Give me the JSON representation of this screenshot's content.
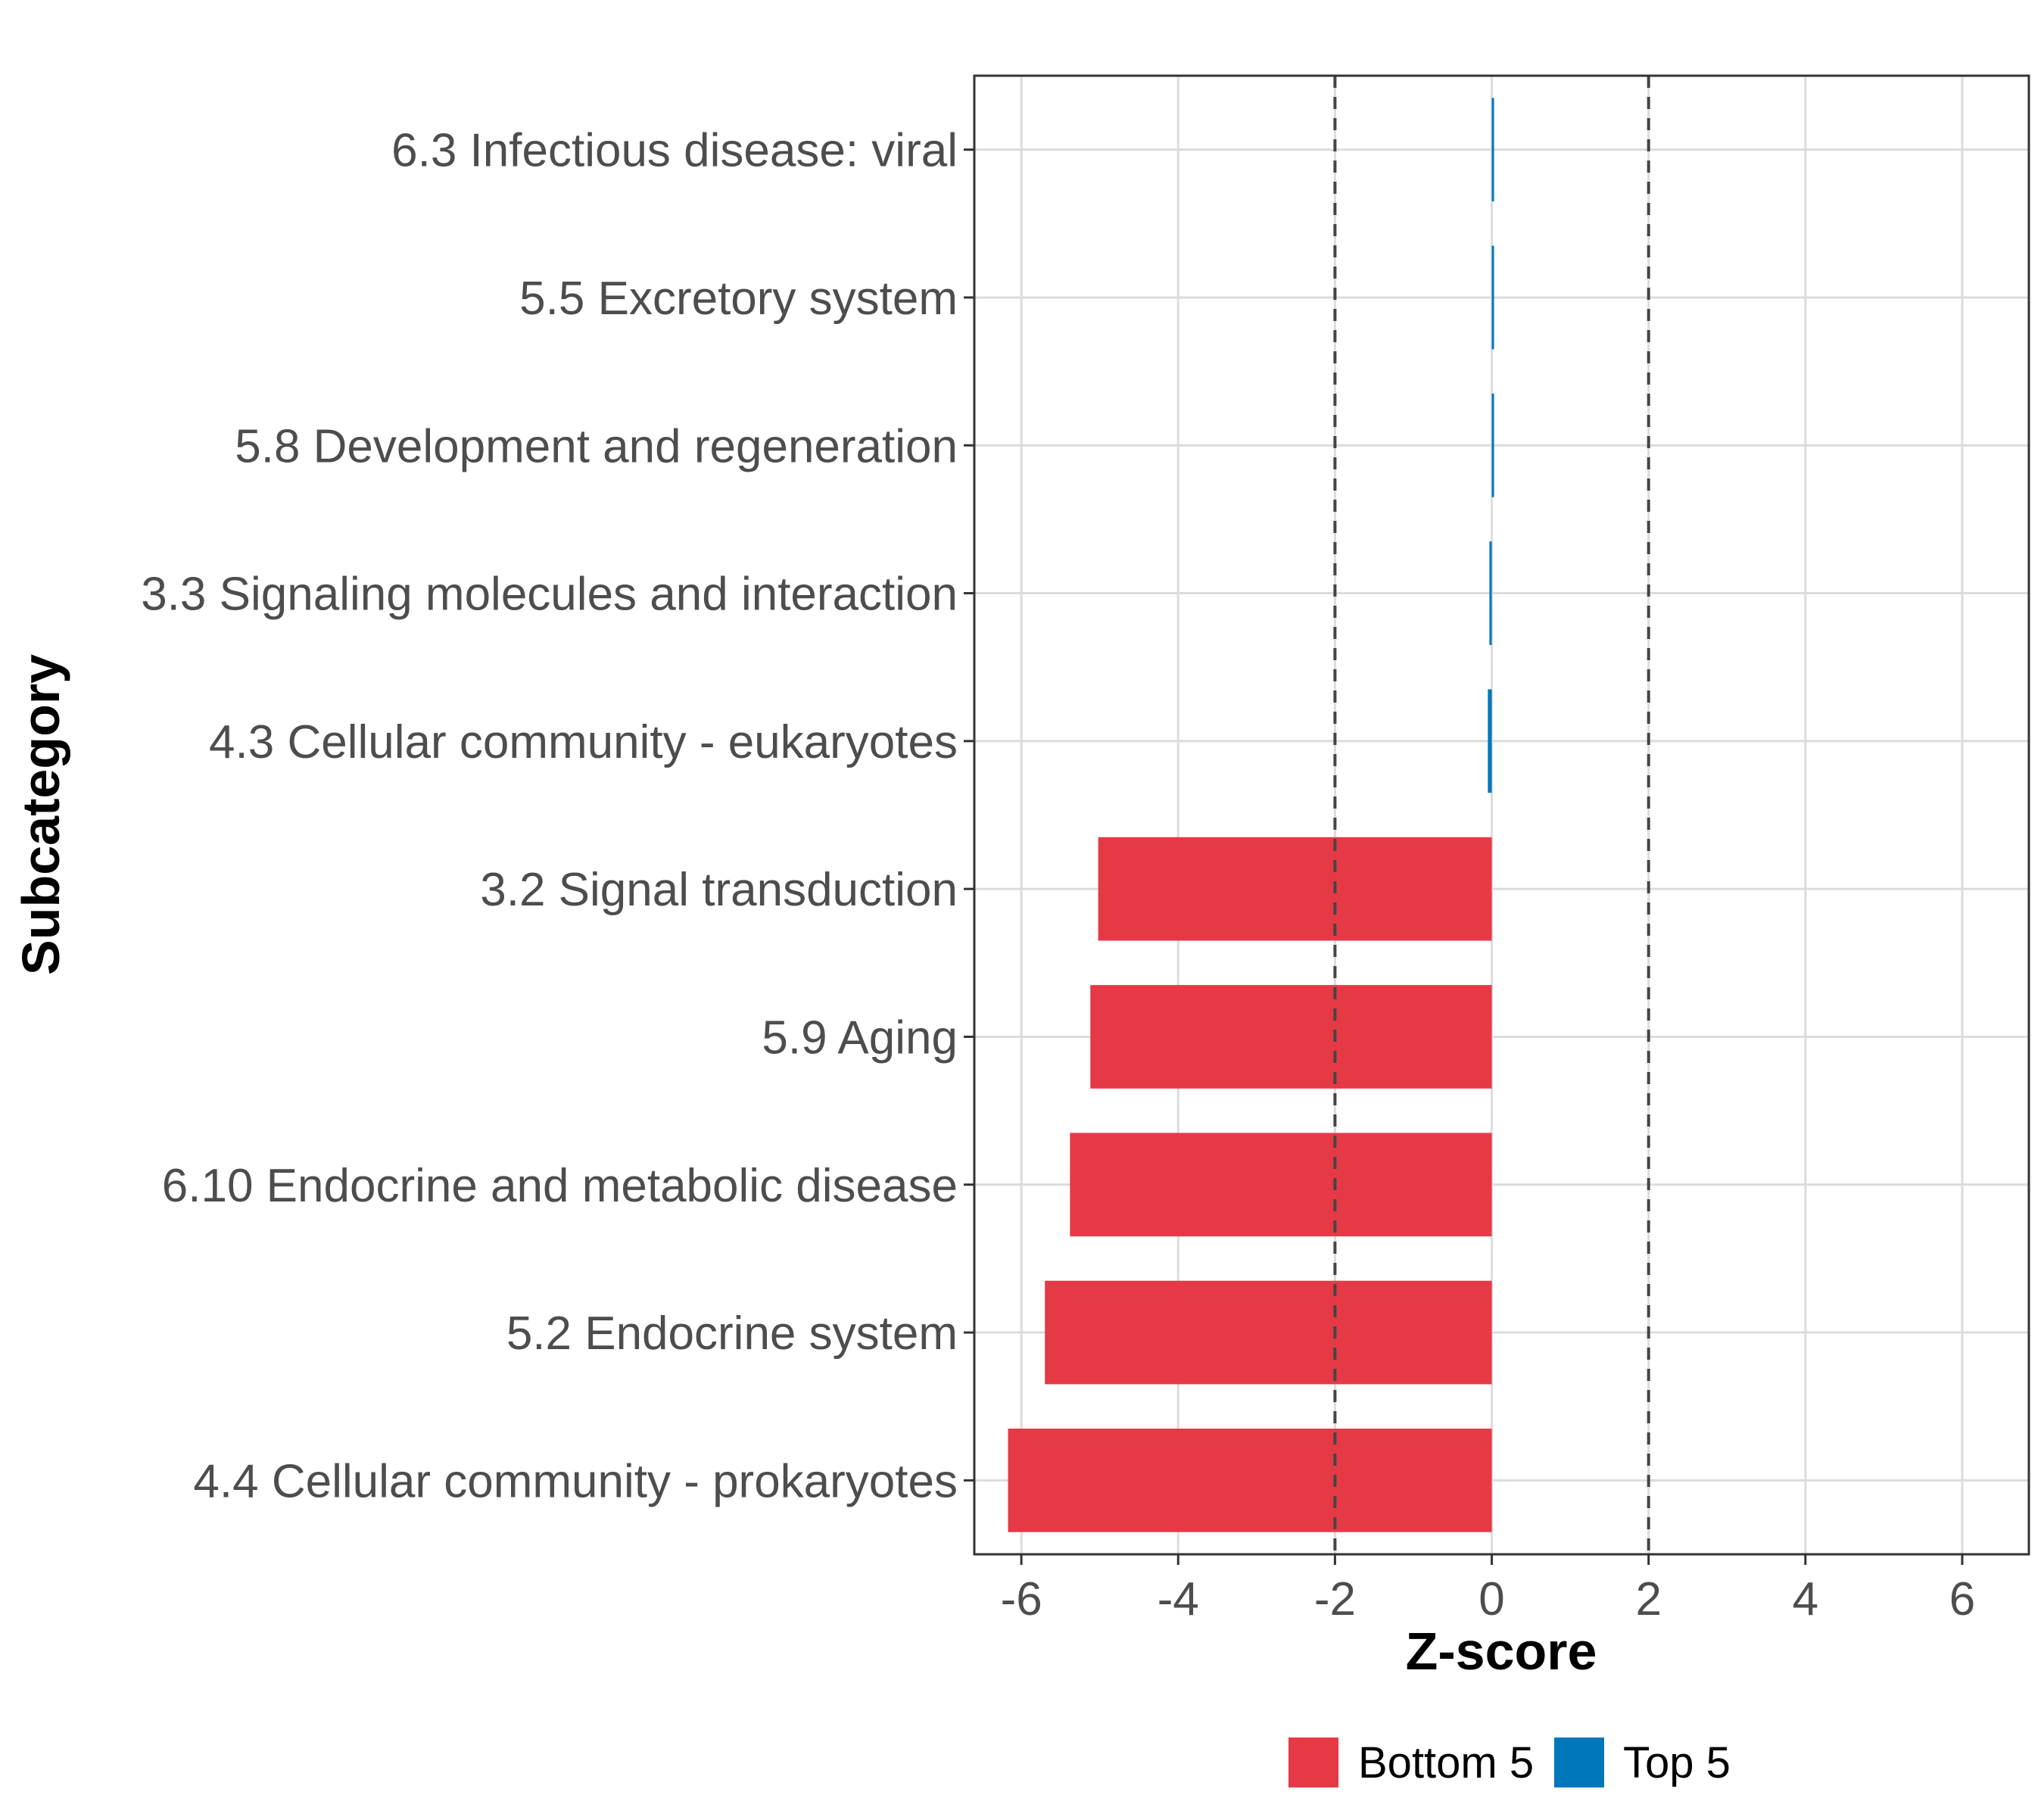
{
  "chart_data": {
    "type": "bar",
    "orientation": "horizontal",
    "xlabel": "Z-score",
    "ylabel": "Subcategory",
    "xlim": [
      -6.6,
      6.85
    ],
    "xticks": [
      -6,
      -4,
      -2,
      0,
      2,
      4,
      6
    ],
    "xtick_labels": [
      "-6",
      "-4",
      "-2",
      "0",
      "2",
      "4",
      "6"
    ],
    "reference_lines": [
      -2,
      2
    ],
    "grid": true,
    "categories": [
      "6.3 Infectious disease: viral",
      "5.5 Excretory system",
      "5.8 Development and regeneration",
      "3.3 Signaling molecules and interaction",
      "4.3 Cellular community - eukaryotes",
      "3.2 Signal transduction",
      "5.9 Aging",
      "6.10 Endocrine and metabolic disease",
      "5.2 Endocrine system",
      "4.4 Cellular community - prokaryotes"
    ],
    "values": [
      0.02,
      0.02,
      0.02,
      -0.03,
      -0.05,
      -5.02,
      -5.12,
      -5.38,
      -5.7,
      -6.17
    ],
    "groups": [
      "Top 5",
      "Top 5",
      "Top 5",
      "Top 5",
      "Top 5",
      "Bottom 5",
      "Bottom 5",
      "Bottom 5",
      "Bottom 5",
      "Bottom 5"
    ],
    "legend": {
      "position": "bottom",
      "entries": [
        {
          "name": "Bottom 5",
          "color": "#e63946"
        },
        {
          "name": "Top 5",
          "color": "#0077bb"
        }
      ]
    },
    "colors": {
      "Bottom 5": "#e63946",
      "Top 5": "#0077bb"
    }
  }
}
